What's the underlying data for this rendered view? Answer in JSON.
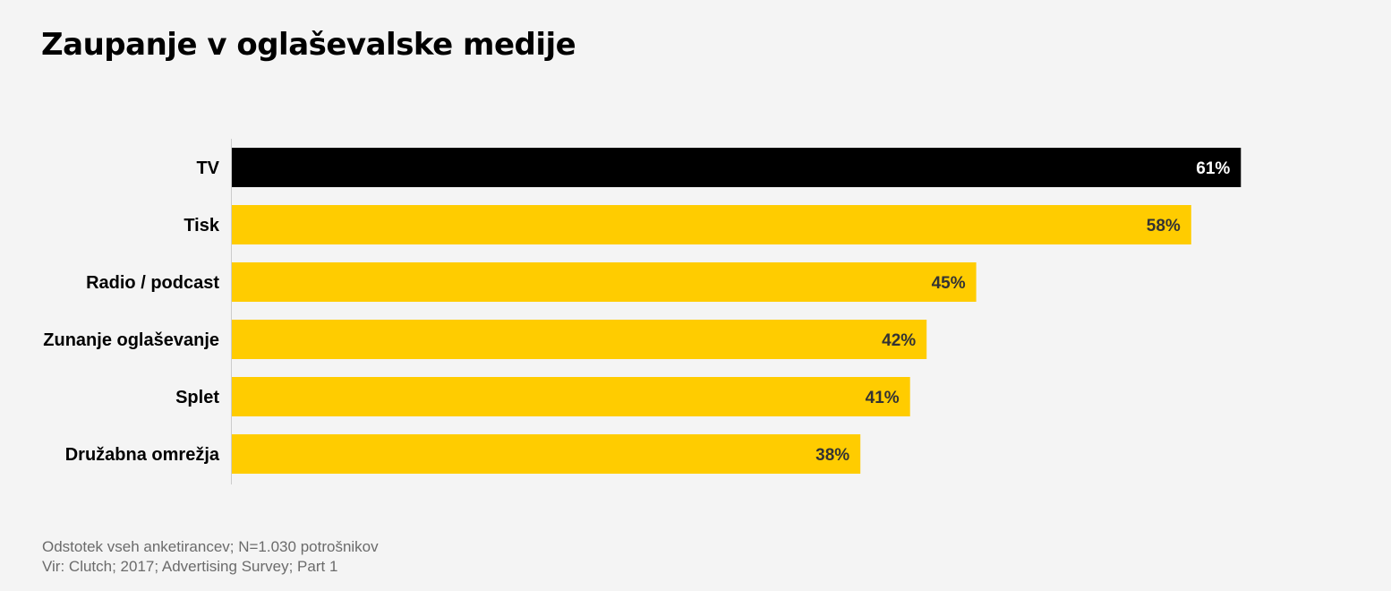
{
  "chart_data": {
    "type": "bar",
    "orientation": "horizontal",
    "title": "Zaupanje v oglaševalske medije",
    "categories": [
      "TV",
      "Tisk",
      "Radio / podcast",
      "Zunanje oglaševanje",
      "Splet",
      "Družabna omrežja"
    ],
    "values": [
      61,
      58,
      45,
      42,
      41,
      38
    ],
    "value_labels": [
      "61%",
      "58%",
      "45%",
      "42%",
      "41%",
      "38%"
    ],
    "unit": "%",
    "highlight_index": 0,
    "colors": {
      "highlight": "#000000",
      "bar": "#ffcc00",
      "highlight_label": "#ffffff",
      "bar_label": "#333333",
      "category_label": "#000000",
      "axis": "#cccccc"
    },
    "grid": false,
    "legend": "none"
  },
  "footnote": {
    "line1": "Odstotek vseh anketirancev; N=1.030 potrošnikov",
    "line2": "Vir: Clutch; 2017; Advertising Survey; Part 1"
  }
}
